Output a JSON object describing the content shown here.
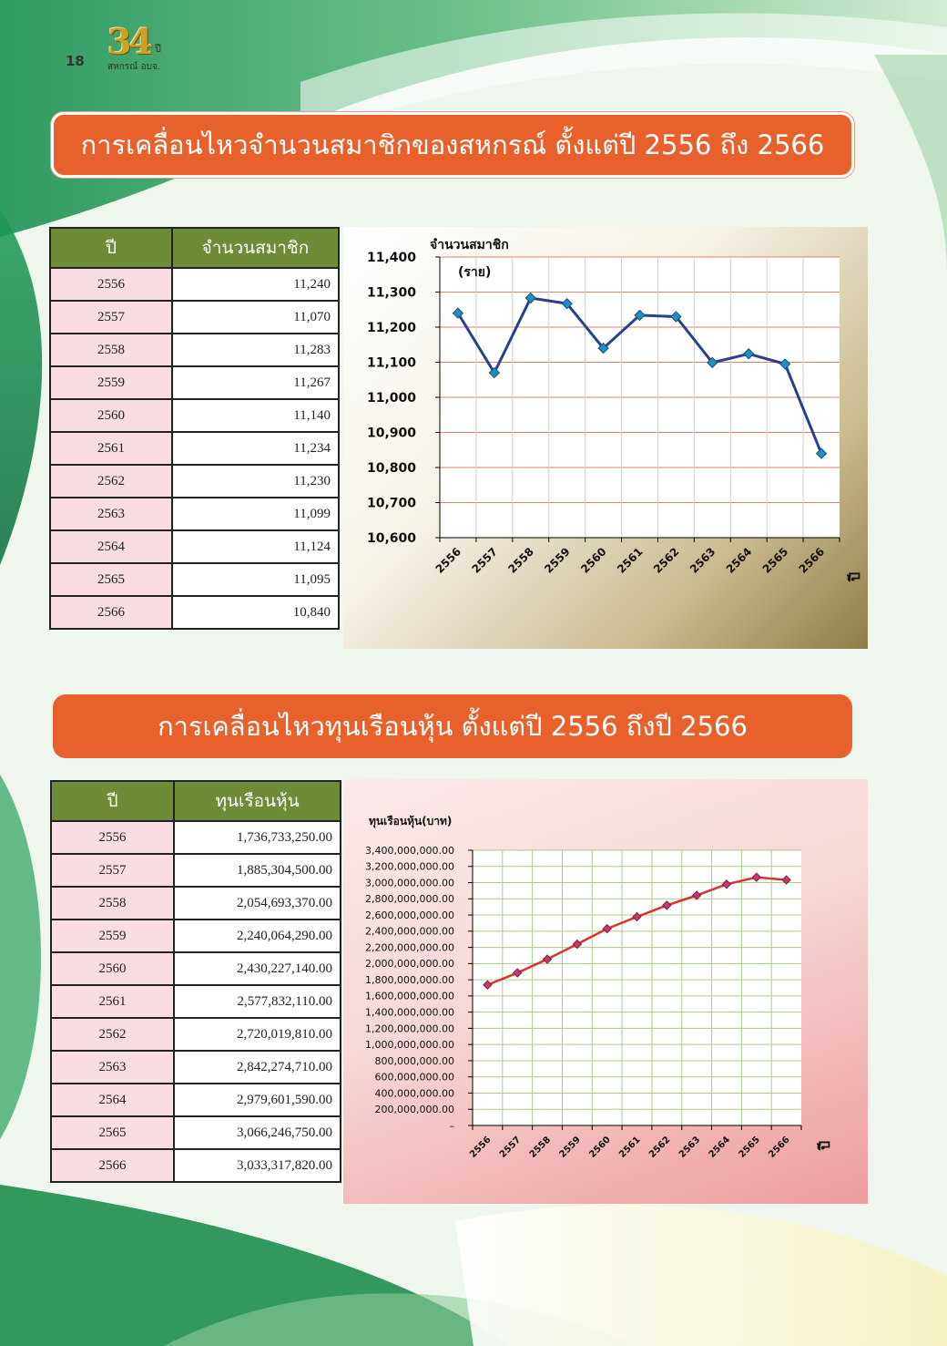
{
  "header": {
    "page_number": "18",
    "logo_number": "34",
    "logo_year_word": "ปี",
    "logo_subtitle": "สหกรณ์ อบจ."
  },
  "section1": {
    "title": "การเคลื่อนไหวจำนวนสมาชิกของสหกรณ์ ตั้งแต่ปี 2556 ถึง 2566",
    "table": {
      "headers": [
        "ปี",
        "จำนวนสมาชิก"
      ],
      "rows": [
        [
          "2556",
          "11,240"
        ],
        [
          "2557",
          "11,070"
        ],
        [
          "2558",
          "11,283"
        ],
        [
          "2559",
          "11,267"
        ],
        [
          "2560",
          "11,140"
        ],
        [
          "2561",
          "11,234"
        ],
        [
          "2562",
          "11,230"
        ],
        [
          "2563",
          "11,099"
        ],
        [
          "2564",
          "11,124"
        ],
        [
          "2565",
          "11,095"
        ],
        [
          "2566",
          "10,840"
        ]
      ]
    }
  },
  "section2": {
    "title": "การเคลื่อนไหวทุนเรือนหุ้น ตั้งแต่ปี 2556 ถึงปี 2566",
    "table": {
      "headers": [
        "ปี",
        "ทุนเรือนหุ้น"
      ],
      "rows": [
        [
          "2556",
          "1,736,733,250.00"
        ],
        [
          "2557",
          "1,885,304,500.00"
        ],
        [
          "2558",
          "2,054,693,370.00"
        ],
        [
          "2559",
          "2,240,064,290.00"
        ],
        [
          "2560",
          "2,430,227,140.00"
        ],
        [
          "2561",
          "2,577,832,110.00"
        ],
        [
          "2562",
          "2,720,019,810.00"
        ],
        [
          "2563",
          "2,842,274,710.00"
        ],
        [
          "2564",
          "2,979,601,590.00"
        ],
        [
          "2565",
          "3,066,246,750.00"
        ],
        [
          "2566",
          "3,033,317,820.00"
        ]
      ]
    }
  },
  "chart_data": [
    {
      "type": "line",
      "title": "จำนวนสมาชิก",
      "ylabel": "(ราย)",
      "xlabel": "ปี",
      "categories": [
        "2556",
        "2557",
        "2558",
        "2559",
        "2560",
        "2561",
        "2562",
        "2563",
        "2564",
        "2565",
        "2566"
      ],
      "values": [
        11240,
        11070,
        11283,
        11267,
        11140,
        11234,
        11230,
        11099,
        11124,
        11095,
        10840
      ],
      "ylim": [
        10600,
        11400
      ],
      "yticks": [
        "11,400",
        "11,300",
        "11,200",
        "11,100",
        "11,000",
        "10,900",
        "10,800",
        "10,700",
        "10,600"
      ],
      "grid": true,
      "line_color": "#2b3f8f",
      "marker_color": "#1f8fbf",
      "grid_color": "#d9826a"
    },
    {
      "type": "line",
      "title": "ทุนเรือนหุ้น(บาท)",
      "xlabel": "ปี",
      "categories": [
        "2556",
        "2557",
        "2558",
        "2559",
        "2560",
        "2561",
        "2562",
        "2563",
        "2564",
        "2565",
        "2566"
      ],
      "values": [
        1736733250,
        1885304500,
        2054693370,
        2240064290,
        2430227140,
        2577832110,
        2720019810,
        2842274710,
        2979601590,
        3066246750,
        3033317820
      ],
      "ylim": [
        0,
        3400000000
      ],
      "yticks": [
        "3,400,000,000.00",
        "3,200,000,000.00",
        "3,000,000,000.00",
        "2,800,000,000.00",
        "2,600,000,000.00",
        "2,400,000,000.00",
        "2,200,000,000.00",
        "2,000,000,000.00",
        "1,800,000,000.00",
        "1,600,000,000.00",
        "1,400,000,000.00",
        "1,200,000,000.00",
        "1,000,000,000.00",
        "800,000,000.00",
        "600,000,000.00",
        "400,000,000.00",
        "200,000,000.00",
        "–"
      ],
      "grid": true,
      "line_color": "#d8352a",
      "marker_color": "#c8386e",
      "grid_color": "#a8cc88"
    }
  ]
}
